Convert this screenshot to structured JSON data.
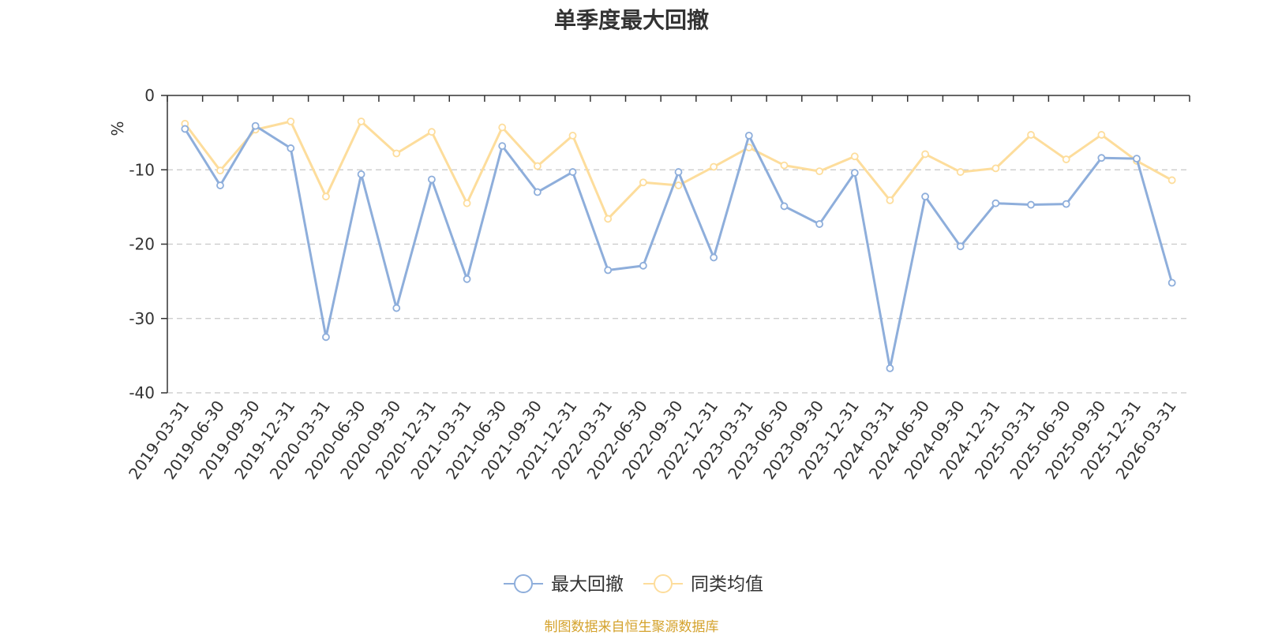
{
  "colors": {
    "series1": "#8eaedb",
    "series2": "#fddd9c",
    "source": "#d4a22c",
    "unit": "#e8393f",
    "grid": "#c8c8c8",
    "axis": "#333333"
  },
  "source_note": "制图数据来自恒生聚源数据库",
  "chart_data": {
    "type": "line",
    "title": "单季度最大回撤",
    "ylabel": "%",
    "xlabel": "",
    "ylim": [
      -40,
      0
    ],
    "yticks": [
      "0",
      "-10",
      "-20",
      "-30",
      "-40"
    ],
    "grid": true,
    "legend_position": "bottom-center",
    "categories": [
      "2019-03-31",
      "2019-06-30",
      "2019-09-30",
      "2019-12-31",
      "2020-03-31",
      "2020-06-30",
      "2020-09-30",
      "2020-12-31",
      "2021-03-31",
      "2021-06-30",
      "2021-09-30",
      "2021-12-31",
      "2022-03-31",
      "2022-06-30",
      "2022-09-30",
      "2022-12-31",
      "2023-03-31",
      "2023-06-30",
      "2023-09-30",
      "2023-12-31",
      "2024-03-31",
      "2024-06-30",
      "2024-09-30",
      "2024-12-31",
      "2025-03-31",
      "2025-06-30",
      "2025-09-30",
      "2025-12-31",
      "2026-03-31"
    ],
    "series": [
      {
        "name": "最大回撤",
        "values": [
          -4.5,
          -12.1,
          -4.1,
          -7.1,
          -32.5,
          -10.6,
          -28.6,
          -11.3,
          -24.7,
          -6.8,
          -13.0,
          -10.3,
          -23.5,
          -22.9,
          -10.3,
          -21.8,
          -5.4,
          -14.9,
          -17.3,
          -10.4,
          -36.7,
          -13.6,
          -20.3,
          -14.5,
          -14.7,
          -14.6,
          -8.4,
          -8.5,
          -25.2
        ]
      },
      {
        "name": "同类均值",
        "values": [
          -3.8,
          -10.1,
          -4.6,
          -3.5,
          -13.6,
          -3.5,
          -7.8,
          -4.9,
          -14.5,
          -4.3,
          -9.5,
          -5.4,
          -16.6,
          -11.7,
          -12.1,
          -9.6,
          -7.0,
          -9.4,
          -10.2,
          -8.2,
          -14.1,
          -7.9,
          -10.3,
          -9.8,
          -5.3,
          -8.6,
          -5.3,
          -8.8,
          -11.4
        ]
      }
    ]
  }
}
